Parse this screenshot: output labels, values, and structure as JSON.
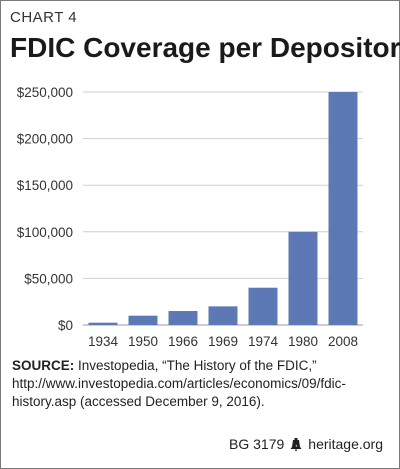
{
  "header": {
    "chart_number": "CHART 4",
    "title": "FDIC Coverage per Depositor"
  },
  "chart_data": {
    "type": "bar",
    "title": "FDIC Coverage per Depositor",
    "categories": [
      "1934",
      "1950",
      "1966",
      "1969",
      "1974",
      "1980",
      "2008"
    ],
    "values": [
      2500,
      10000,
      15000,
      20000,
      40000,
      100000,
      250000
    ],
    "xlabel": "",
    "ylabel": "",
    "ylim": [
      0,
      250000
    ],
    "yticks": [
      0,
      50000,
      100000,
      150000,
      200000,
      250000
    ],
    "ytick_labels": [
      "$0",
      "$50,000",
      "$100,000",
      "$150,000",
      "$200,000",
      "$250,000"
    ],
    "grid": "horizontal",
    "bar_color": "#5c79b5"
  },
  "source": {
    "label": "SOURCE:",
    "text": "Investopedia, “The History of the FDIC,” http://www.investopedia.com/articles/economics/09/fdic-history.asp (accessed December 9, 2016)."
  },
  "footer": {
    "report_id": "BG 3179",
    "icon": "liberty-bell-icon",
    "site": "heritage.org"
  }
}
